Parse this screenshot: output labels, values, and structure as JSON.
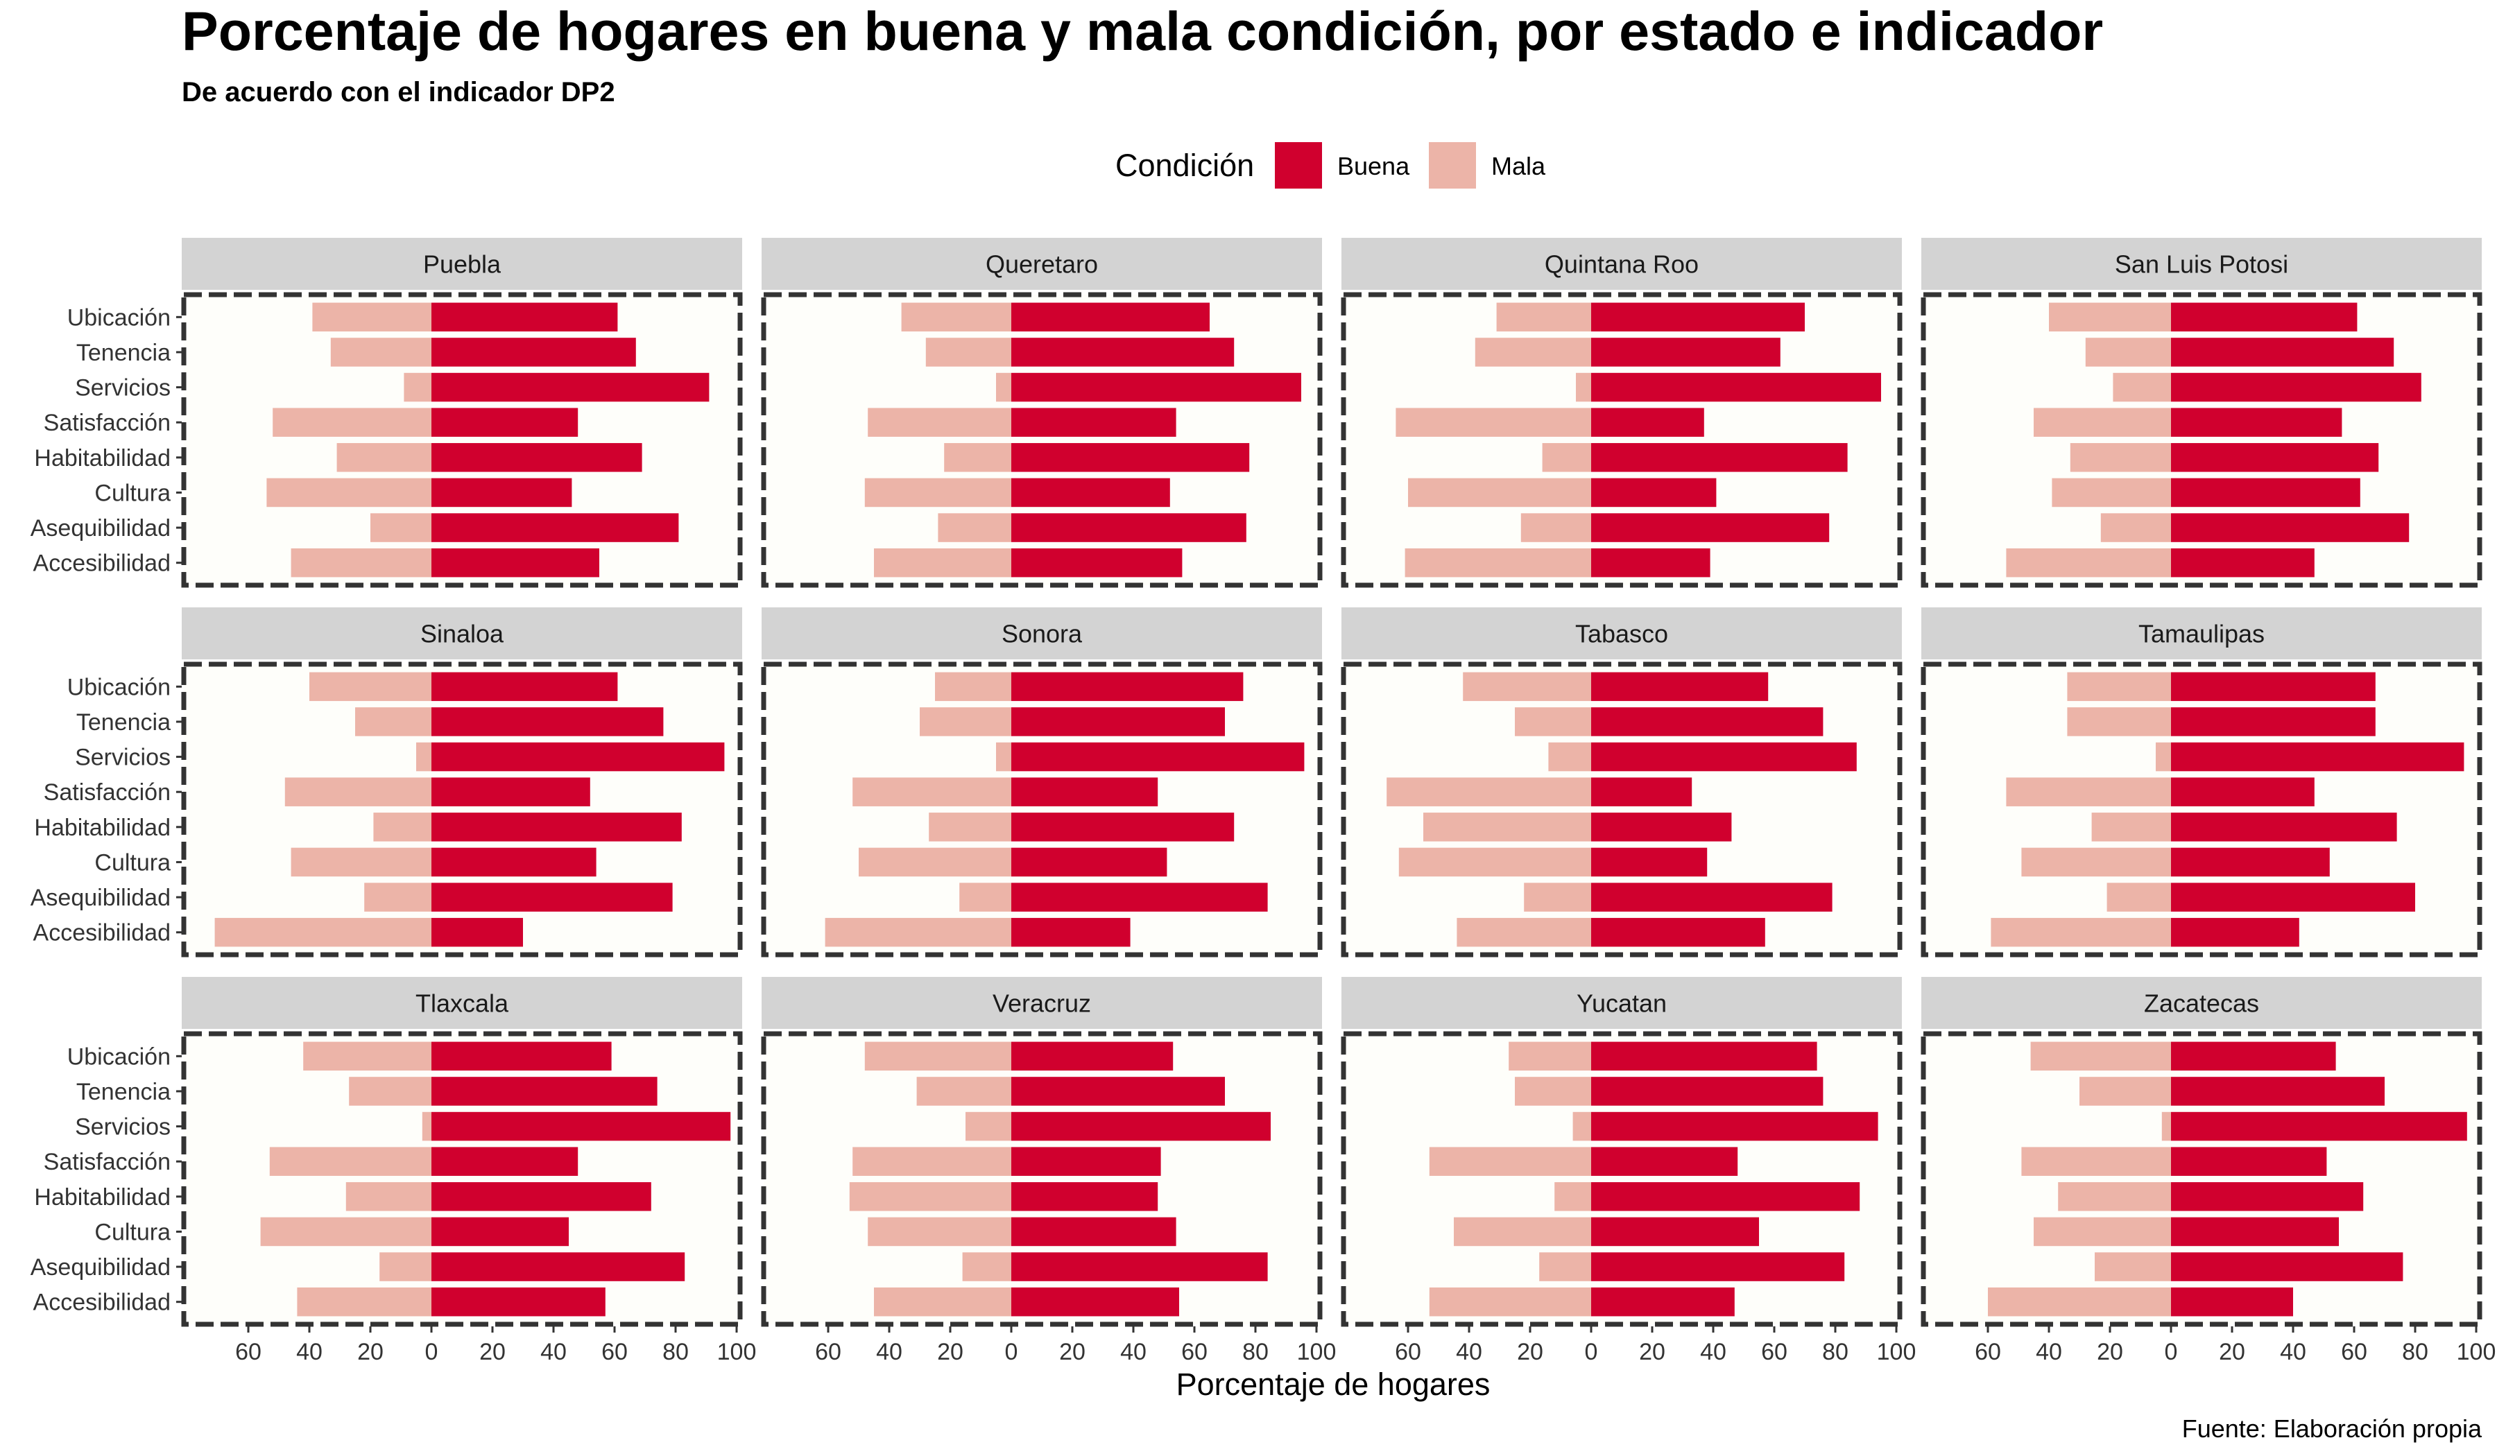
{
  "chart_data": {
    "type": "bar",
    "orientation": "horizontal-diverging",
    "title": "Porcentaje de hogares en buena y mala condición, por estado e indicador",
    "subtitle": "De acuerdo con el indicador DP2",
    "xlabel": "Porcentaje de hogares",
    "caption": "Fuente: Elaboración propia",
    "legend": {
      "title": "Condición",
      "position": "top",
      "items": [
        {
          "label": "Buena",
          "color": "#D0002E"
        },
        {
          "label": "Mala",
          "color": "#ECB4A8"
        }
      ]
    },
    "xlim": [
      -80,
      100
    ],
    "x_ticks": [
      -60,
      -40,
      -20,
      0,
      20,
      40,
      60,
      80,
      100
    ],
    "x_tick_labels": [
      "60",
      "40",
      "20",
      "0",
      "20",
      "40",
      "60",
      "80",
      "100"
    ],
    "categories": [
      "Ubicación",
      "Tenencia",
      "Servicios",
      "Satisfacción",
      "Habitabilidad",
      "Cultura",
      "Asequibilidad",
      "Accesibilidad"
    ],
    "grid": false,
    "panel_background": "#FEFEFA",
    "strip_background": "#D3D3D3",
    "panels": [
      {
        "state": "Puebla",
        "series": [
          {
            "name": "Buena",
            "values": [
              61,
              67,
              91,
              48,
              69,
              46,
              81,
              55
            ]
          },
          {
            "name": "Mala",
            "values": [
              39,
              33,
              9,
              52,
              31,
              54,
              20,
              46
            ]
          }
        ]
      },
      {
        "state": "Queretaro",
        "series": [
          {
            "name": "Buena",
            "values": [
              65,
              73,
              95,
              54,
              78,
              52,
              77,
              56
            ]
          },
          {
            "name": "Mala",
            "values": [
              36,
              28,
              5,
              47,
              22,
              48,
              24,
              45
            ]
          }
        ]
      },
      {
        "state": "Quintana Roo",
        "series": [
          {
            "name": "Buena",
            "values": [
              70,
              62,
              95,
              37,
              84,
              41,
              78,
              39
            ]
          },
          {
            "name": "Mala",
            "values": [
              31,
              38,
              5,
              64,
              16,
              60,
              23,
              61
            ]
          }
        ]
      },
      {
        "state": "San Luis Potosi",
        "series": [
          {
            "name": "Buena",
            "values": [
              61,
              73,
              82,
              56,
              68,
              62,
              78,
              47
            ]
          },
          {
            "name": "Mala",
            "values": [
              40,
              28,
              19,
              45,
              33,
              39,
              23,
              54
            ]
          }
        ]
      },
      {
        "state": "Sinaloa",
        "series": [
          {
            "name": "Buena",
            "values": [
              61,
              76,
              96,
              52,
              82,
              54,
              79,
              30
            ]
          },
          {
            "name": "Mala",
            "values": [
              40,
              25,
              5,
              48,
              19,
              46,
              22,
              71
            ]
          }
        ]
      },
      {
        "state": "Sonora",
        "series": [
          {
            "name": "Buena",
            "values": [
              76,
              70,
              96,
              48,
              73,
              51,
              84,
              39
            ]
          },
          {
            "name": "Mala",
            "values": [
              25,
              30,
              5,
              52,
              27,
              50,
              17,
              61
            ]
          }
        ]
      },
      {
        "state": "Tabasco",
        "series": [
          {
            "name": "Buena",
            "values": [
              58,
              76,
              87,
              33,
              46,
              38,
              79,
              57
            ]
          },
          {
            "name": "Mala",
            "values": [
              42,
              25,
              14,
              67,
              55,
              63,
              22,
              44
            ]
          }
        ]
      },
      {
        "state": "Tamaulipas",
        "series": [
          {
            "name": "Buena",
            "values": [
              67,
              67,
              96,
              47,
              74,
              52,
              80,
              42
            ]
          },
          {
            "name": "Mala",
            "values": [
              34,
              34,
              5,
              54,
              26,
              49,
              21,
              59
            ]
          }
        ]
      },
      {
        "state": "Tlaxcala",
        "series": [
          {
            "name": "Buena",
            "values": [
              59,
              74,
              98,
              48,
              72,
              45,
              83,
              57
            ]
          },
          {
            "name": "Mala",
            "values": [
              42,
              27,
              3,
              53,
              28,
              56,
              17,
              44
            ]
          }
        ]
      },
      {
        "state": "Veracruz",
        "series": [
          {
            "name": "Buena",
            "values": [
              53,
              70,
              85,
              49,
              48,
              54,
              84,
              55
            ]
          },
          {
            "name": "Mala",
            "values": [
              48,
              31,
              15,
              52,
              53,
              47,
              16,
              45
            ]
          }
        ]
      },
      {
        "state": "Yucatan",
        "series": [
          {
            "name": "Buena",
            "values": [
              74,
              76,
              94,
              48,
              88,
              55,
              83,
              47
            ]
          },
          {
            "name": "Mala",
            "values": [
              27,
              25,
              6,
              53,
              12,
              45,
              17,
              53
            ]
          }
        ]
      },
      {
        "state": "Zacatecas",
        "series": [
          {
            "name": "Buena",
            "values": [
              54,
              70,
              97,
              51,
              63,
              55,
              76,
              40
            ]
          },
          {
            "name": "Mala",
            "values": [
              46,
              30,
              3,
              49,
              37,
              45,
              25,
              60
            ]
          }
        ]
      }
    ]
  }
}
